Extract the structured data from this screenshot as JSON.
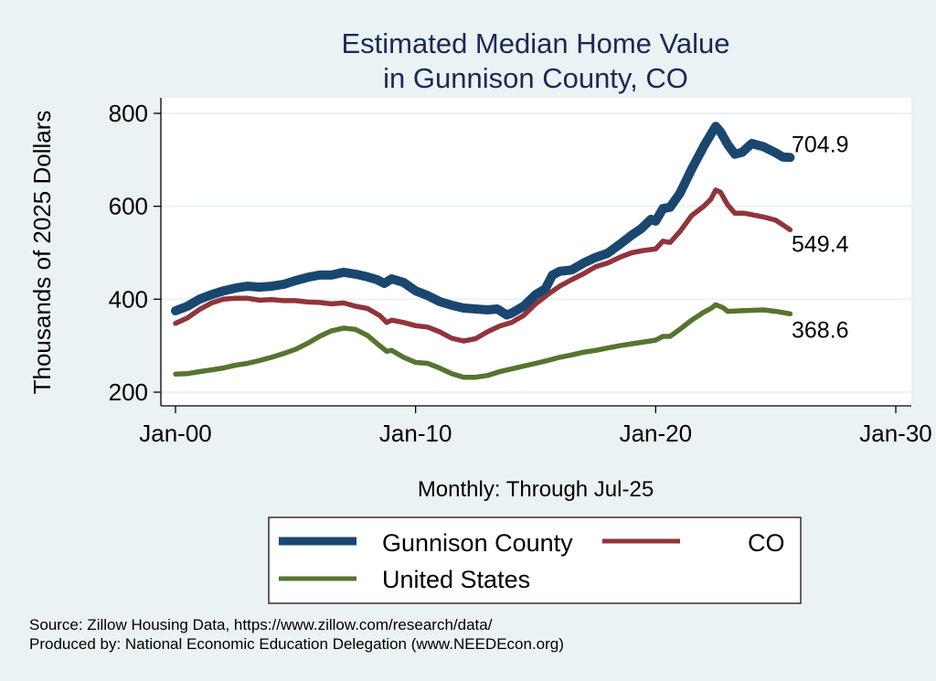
{
  "chart_data": {
    "type": "line",
    "title": [
      "Estimated Median Home Value",
      "in Gunnison County, CO"
    ],
    "xlabel": "Monthly: Through Jul-25",
    "ylabel": "Thousands of 2025 Dollars",
    "xlim": [
      2000,
      2030
    ],
    "ylim": [
      200,
      800
    ],
    "x_ticks": [
      {
        "value": 2000,
        "label": "Jan-00"
      },
      {
        "value": 2010,
        "label": "Jan-10"
      },
      {
        "value": 2020,
        "label": "Jan-20"
      },
      {
        "value": 2030,
        "label": "Jan-30"
      }
    ],
    "y_ticks": [
      200,
      400,
      600,
      800
    ],
    "grid": true,
    "legend_position": "bottom",
    "series": [
      {
        "name": "Gunnison County",
        "color": "#1a476f",
        "end_label": "704.9",
        "points": [
          [
            2000.0,
            375
          ],
          [
            2000.5,
            385
          ],
          [
            2001.0,
            400
          ],
          [
            2001.5,
            410
          ],
          [
            2002.0,
            418
          ],
          [
            2002.5,
            424
          ],
          [
            2003.0,
            428
          ],
          [
            2003.5,
            426
          ],
          [
            2004.0,
            428
          ],
          [
            2004.5,
            432
          ],
          [
            2005.0,
            440
          ],
          [
            2005.5,
            447
          ],
          [
            2006.0,
            452
          ],
          [
            2006.5,
            452
          ],
          [
            2007.0,
            458
          ],
          [
            2007.5,
            454
          ],
          [
            2008.0,
            448
          ],
          [
            2008.4,
            442
          ],
          [
            2008.7,
            434
          ],
          [
            2009.0,
            444
          ],
          [
            2009.5,
            436
          ],
          [
            2010.0,
            418
          ],
          [
            2010.5,
            408
          ],
          [
            2011.0,
            395
          ],
          [
            2011.5,
            387
          ],
          [
            2012.0,
            381
          ],
          [
            2012.5,
            379
          ],
          [
            2013.0,
            377
          ],
          [
            2013.4,
            379
          ],
          [
            2013.8,
            366
          ],
          [
            2014.0,
            370
          ],
          [
            2014.5,
            385
          ],
          [
            2015.0,
            410
          ],
          [
            2015.4,
            422
          ],
          [
            2015.7,
            452
          ],
          [
            2016.0,
            460
          ],
          [
            2016.5,
            463
          ],
          [
            2017.0,
            478
          ],
          [
            2017.5,
            490
          ],
          [
            2018.0,
            499
          ],
          [
            2018.5,
            518
          ],
          [
            2019.0,
            538
          ],
          [
            2019.4,
            552
          ],
          [
            2019.8,
            572
          ],
          [
            2020.0,
            568
          ],
          [
            2020.3,
            595
          ],
          [
            2020.6,
            598
          ],
          [
            2021.0,
            627
          ],
          [
            2021.5,
            680
          ],
          [
            2022.0,
            729
          ],
          [
            2022.3,
            755
          ],
          [
            2022.5,
            772
          ],
          [
            2022.7,
            760
          ],
          [
            2023.0,
            733
          ],
          [
            2023.3,
            712
          ],
          [
            2023.6,
            716
          ],
          [
            2024.0,
            735
          ],
          [
            2024.5,
            728
          ],
          [
            2025.0,
            715
          ],
          [
            2025.3,
            706
          ],
          [
            2025.6,
            704.9
          ]
        ]
      },
      {
        "name": "CO",
        "color": "#90353b",
        "end_label": "549.4",
        "points": [
          [
            2000.0,
            348
          ],
          [
            2000.5,
            360
          ],
          [
            2001.0,
            378
          ],
          [
            2001.5,
            392
          ],
          [
            2002.0,
            400
          ],
          [
            2002.5,
            402
          ],
          [
            2003.0,
            402
          ],
          [
            2003.5,
            398
          ],
          [
            2004.0,
            399
          ],
          [
            2004.5,
            397
          ],
          [
            2005.0,
            397
          ],
          [
            2005.5,
            394
          ],
          [
            2006.0,
            393
          ],
          [
            2006.5,
            390
          ],
          [
            2007.0,
            392
          ],
          [
            2007.5,
            385
          ],
          [
            2008.0,
            380
          ],
          [
            2008.5,
            365
          ],
          [
            2008.8,
            350
          ],
          [
            2009.0,
            355
          ],
          [
            2009.5,
            350
          ],
          [
            2010.0,
            343
          ],
          [
            2010.5,
            340
          ],
          [
            2011.0,
            330
          ],
          [
            2011.5,
            316
          ],
          [
            2012.0,
            310
          ],
          [
            2012.5,
            315
          ],
          [
            2013.0,
            330
          ],
          [
            2013.5,
            342
          ],
          [
            2014.0,
            350
          ],
          [
            2014.5,
            365
          ],
          [
            2015.0,
            390
          ],
          [
            2015.5,
            410
          ],
          [
            2016.0,
            428
          ],
          [
            2016.5,
            442
          ],
          [
            2017.0,
            455
          ],
          [
            2017.5,
            470
          ],
          [
            2018.0,
            478
          ],
          [
            2018.5,
            490
          ],
          [
            2019.0,
            500
          ],
          [
            2019.5,
            505
          ],
          [
            2020.0,
            508
          ],
          [
            2020.3,
            525
          ],
          [
            2020.6,
            522
          ],
          [
            2021.0,
            545
          ],
          [
            2021.5,
            580
          ],
          [
            2022.0,
            600
          ],
          [
            2022.3,
            615
          ],
          [
            2022.5,
            635
          ],
          [
            2022.7,
            630
          ],
          [
            2023.0,
            603
          ],
          [
            2023.3,
            585
          ],
          [
            2023.7,
            585
          ],
          [
            2024.0,
            582
          ],
          [
            2024.5,
            577
          ],
          [
            2025.0,
            570
          ],
          [
            2025.3,
            560
          ],
          [
            2025.6,
            549.4
          ]
        ]
      },
      {
        "name": "United States",
        "color": "#55752f",
        "end_label": "368.6",
        "points": [
          [
            2000.0,
            239
          ],
          [
            2000.5,
            240
          ],
          [
            2001.0,
            244
          ],
          [
            2001.5,
            248
          ],
          [
            2002.0,
            252
          ],
          [
            2002.5,
            258
          ],
          [
            2003.0,
            262
          ],
          [
            2003.5,
            268
          ],
          [
            2004.0,
            275
          ],
          [
            2004.5,
            283
          ],
          [
            2005.0,
            292
          ],
          [
            2005.5,
            305
          ],
          [
            2006.0,
            320
          ],
          [
            2006.5,
            332
          ],
          [
            2007.0,
            338
          ],
          [
            2007.5,
            335
          ],
          [
            2008.0,
            322
          ],
          [
            2008.5,
            300
          ],
          [
            2008.8,
            288
          ],
          [
            2009.0,
            290
          ],
          [
            2009.5,
            275
          ],
          [
            2010.0,
            264
          ],
          [
            2010.5,
            262
          ],
          [
            2011.0,
            252
          ],
          [
            2011.5,
            240
          ],
          [
            2012.0,
            232
          ],
          [
            2012.5,
            232
          ],
          [
            2013.0,
            236
          ],
          [
            2013.5,
            244
          ],
          [
            2014.0,
            250
          ],
          [
            2014.5,
            256
          ],
          [
            2015.0,
            262
          ],
          [
            2015.5,
            268
          ],
          [
            2016.0,
            275
          ],
          [
            2016.5,
            280
          ],
          [
            2017.0,
            286
          ],
          [
            2017.5,
            290
          ],
          [
            2018.0,
            295
          ],
          [
            2018.5,
            300
          ],
          [
            2019.0,
            304
          ],
          [
            2019.5,
            308
          ],
          [
            2020.0,
            312
          ],
          [
            2020.3,
            320
          ],
          [
            2020.6,
            320
          ],
          [
            2021.0,
            335
          ],
          [
            2021.5,
            355
          ],
          [
            2022.0,
            372
          ],
          [
            2022.3,
            380
          ],
          [
            2022.5,
            388
          ],
          [
            2022.8,
            382
          ],
          [
            2023.0,
            374
          ],
          [
            2023.5,
            375
          ],
          [
            2024.0,
            376
          ],
          [
            2024.5,
            377
          ],
          [
            2025.0,
            374
          ],
          [
            2025.6,
            368.6
          ]
        ]
      }
    ]
  },
  "notes": [
    "Source: Zillow Housing Data, https://www.zillow.com/research/data/",
    "Produced by: National Economic Education Delegation (www.NEEDEcon.org)"
  ]
}
